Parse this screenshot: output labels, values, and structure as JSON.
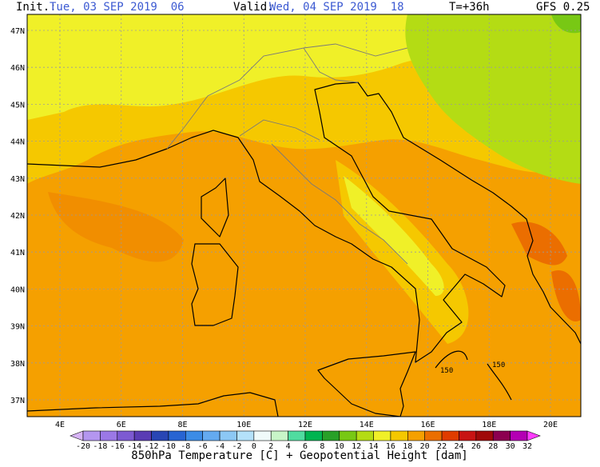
{
  "header": {
    "init_label": "Init.:",
    "init_time": "Tue, 03 SEP 2019  06",
    "valid_label": "Valid:",
    "valid_time": "Wed, 04 SEP 2019  18",
    "lead": "T=+36h",
    "model": "GFS 0.25"
  },
  "latitudes": [
    "47N",
    "46N",
    "45N",
    "44N",
    "43N",
    "42N",
    "41N",
    "40N",
    "39N",
    "38N",
    "37N"
  ],
  "longitudes": [
    "4E",
    "6E",
    "8E",
    "10E",
    "12E",
    "14E",
    "16E",
    "18E",
    "20E"
  ],
  "contour_labels": [
    "150",
    "150"
  ],
  "colorbar": {
    "labels": [
      -20,
      -18,
      -16,
      -14,
      -12,
      -10,
      -8,
      -6,
      -4,
      -2,
      0,
      2,
      4,
      6,
      8,
      10,
      12,
      14,
      16,
      18,
      20,
      22,
      24,
      26,
      28,
      30,
      32
    ],
    "colors": [
      "#d7b4f5",
      "#b496f0",
      "#9b78e6",
      "#7d5ad2",
      "#5a3cb4",
      "#2846b4",
      "#2864d2",
      "#3c8ce6",
      "#64aaf0",
      "#8cc8f5",
      "#b4e1fa",
      "#f0fafa",
      "#c8f5c8",
      "#50dca0",
      "#00b450",
      "#28a028",
      "#78c814",
      "#b4dc14",
      "#f0f028",
      "#f5c800",
      "#f5a000",
      "#eb6e00",
      "#e03c00",
      "#c81414",
      "#a00a0a",
      "#8c0050",
      "#b400b4",
      "#ff3cff"
    ],
    "title": "850hPa Temperature [C] + Geopotential Height [dam]"
  }
}
